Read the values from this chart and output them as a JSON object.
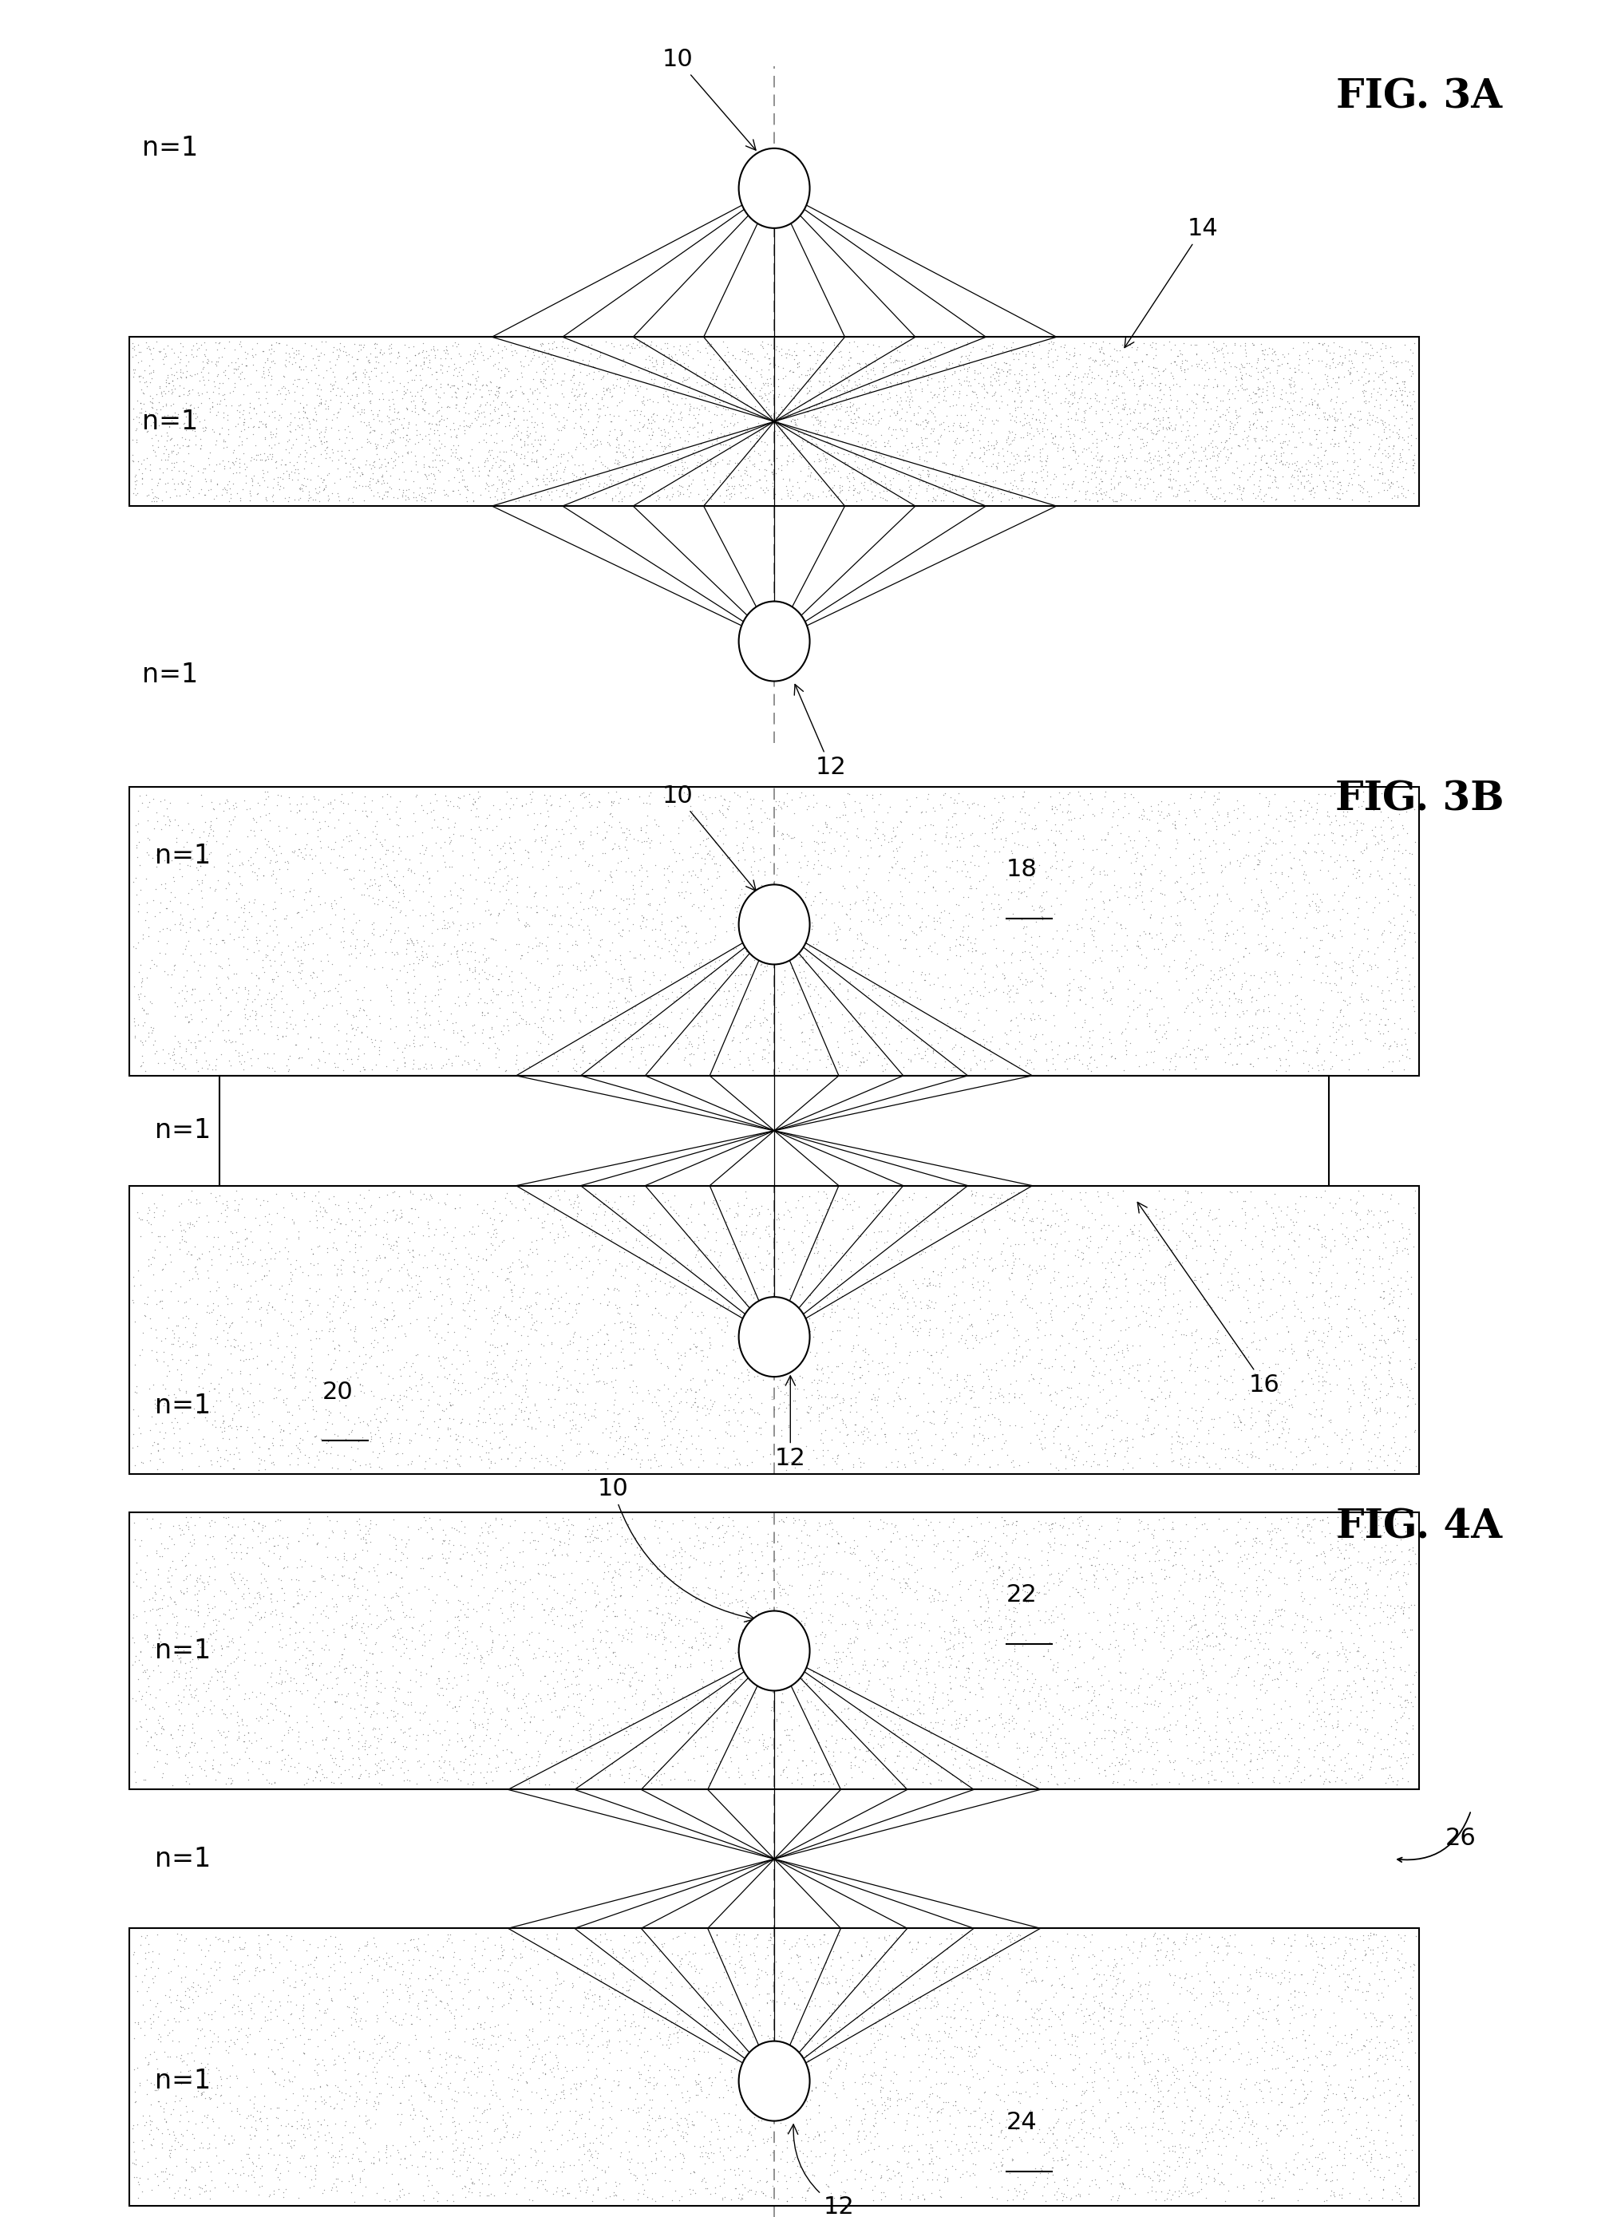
{
  "fig_title_3A": "FIG. 3A",
  "fig_title_3B": "FIG. 3B",
  "fig_title_4A": "FIG. 4A",
  "background_color": "#ffffff",
  "title_fontsize": 36,
  "label_fontsize": 24,
  "ref_fontsize": 22
}
